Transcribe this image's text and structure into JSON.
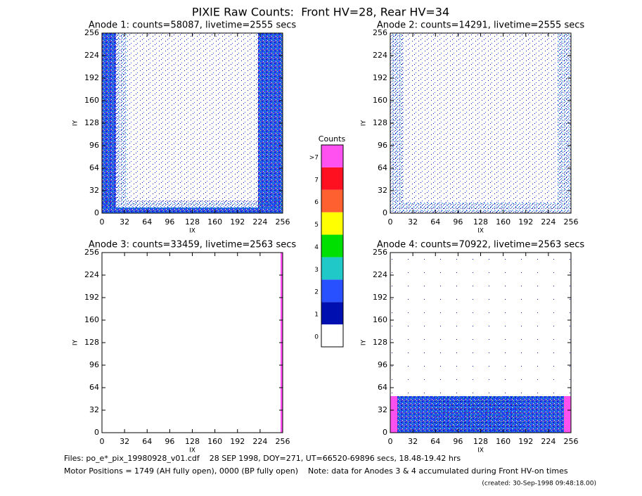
{
  "title": "PIXIE Raw Counts:  Front HV=28, Rear HV=34",
  "chart_data": [
    {
      "type": "heatmap",
      "title": "Anode 1: counts=58087, livetime=2555 secs",
      "xlabel": "IX",
      "ylabel": "IY",
      "xlim": [
        0,
        256
      ],
      "ylim": [
        0,
        256
      ],
      "xticks": [
        0,
        32,
        64,
        96,
        128,
        160,
        192,
        224,
        256
      ],
      "yticks": [
        0,
        32,
        64,
        96,
        128,
        160,
        192,
        224,
        256
      ]
    },
    {
      "type": "heatmap",
      "title": "Anode 2: counts=14291, livetime=2555 secs",
      "xlabel": "IX",
      "ylabel": "IY",
      "xlim": [
        0,
        256
      ],
      "ylim": [
        0,
        256
      ],
      "xticks": [
        0,
        32,
        64,
        96,
        128,
        160,
        192,
        224,
        256
      ],
      "yticks": [
        0,
        32,
        64,
        96,
        128,
        160,
        192,
        224,
        256
      ]
    },
    {
      "type": "heatmap",
      "title": "Anode 3: counts=33459, livetime=2563 secs",
      "xlabel": "IX",
      "ylabel": "IY",
      "xlim": [
        0,
        256
      ],
      "ylim": [
        0,
        256
      ],
      "xticks": [
        0,
        32,
        64,
        96,
        128,
        160,
        192,
        224,
        256
      ],
      "yticks": [
        0,
        32,
        64,
        96,
        128,
        160,
        192,
        224,
        256
      ]
    },
    {
      "type": "heatmap",
      "title": "Anode 4: counts=70922, livetime=2563 secs",
      "xlabel": "IX",
      "ylabel": "IY",
      "xlim": [
        0,
        256
      ],
      "ylim": [
        0,
        256
      ],
      "xticks": [
        0,
        32,
        64,
        96,
        128,
        160,
        192,
        224,
        256
      ],
      "yticks": [
        0,
        32,
        64,
        96,
        128,
        160,
        192,
        224,
        256
      ]
    }
  ],
  "colorbar": {
    "title": "Counts",
    "levels": [
      {
        "label": "0",
        "color": "#ffffff"
      },
      {
        "label": "1",
        "color": "#0010b0"
      },
      {
        "label": "2",
        "color": "#2850ff"
      },
      {
        "label": "3",
        "color": "#20c8c8"
      },
      {
        "label": "4",
        "color": "#00e000"
      },
      {
        "label": "5",
        "color": "#ffff00"
      },
      {
        "label": "6",
        "color": "#ff6030"
      },
      {
        "label": "7",
        "color": "#ff1020"
      },
      {
        "label": ">7",
        "color": "#ff50f0"
      }
    ]
  },
  "footer": {
    "files": "Files: po_e*_pix_19980928_v01.cdf    28 SEP 1998, DOY=271, UT=66520-69896 secs, 18.48-19.42 hrs",
    "motor": "Motor Positions = 1749 (AH fully open), 0000 (BP fully open)    Note: data for Anodes 3 & 4 accumulated during Front HV-on times",
    "created": "(created: 30-Sep-1998 09:48:18.00)"
  }
}
